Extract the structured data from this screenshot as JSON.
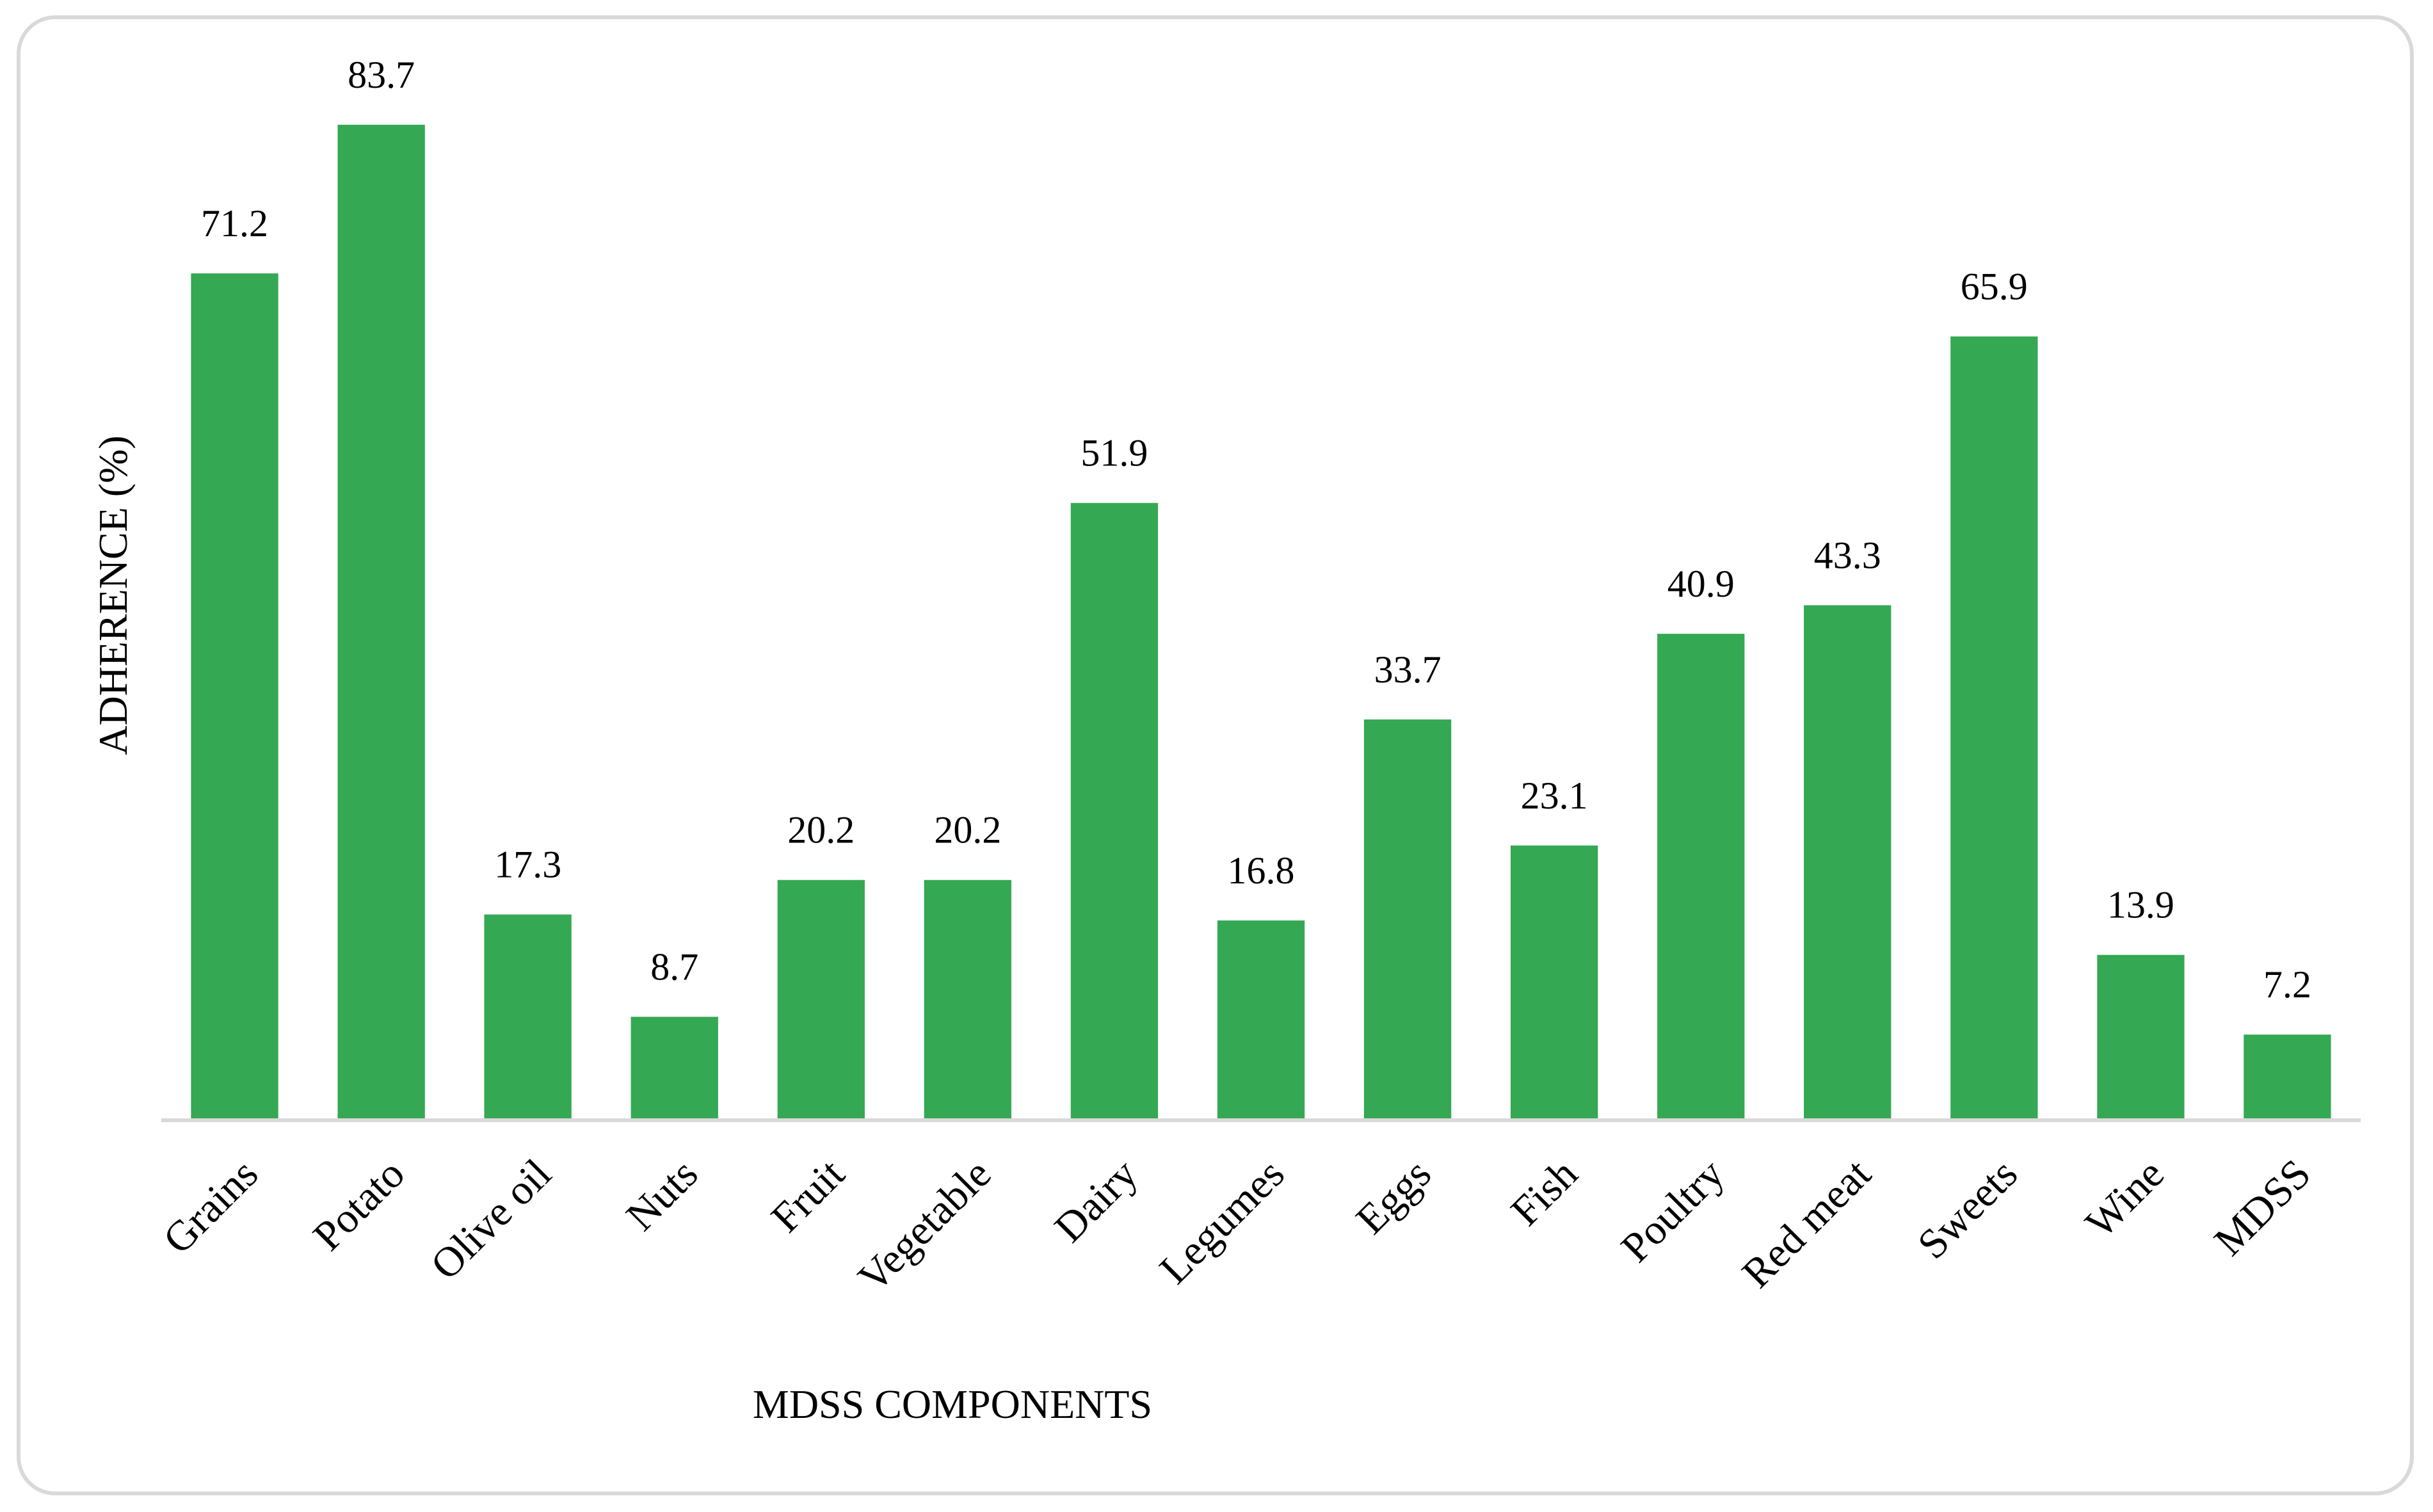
{
  "chart_data": {
    "type": "bar",
    "title": "",
    "xlabel": "MDSS COMPONENTS",
    "ylabel": "ADHERENCE (%)",
    "categories": [
      "Grains",
      "Potato",
      "Olive oil",
      "Nuts",
      "Fruit",
      "Vegetable",
      "Dairy",
      "Legumes",
      "Eggs",
      "Fish",
      "Poultry",
      "Red meat",
      "Sweets",
      "Wine",
      "MDSS"
    ],
    "values": [
      71.2,
      83.7,
      17.3,
      8.7,
      20.2,
      20.2,
      51.9,
      16.8,
      33.7,
      23.1,
      40.9,
      43.3,
      65.9,
      13.9,
      7.2
    ],
    "data_labels": [
      "71.2",
      "83.7",
      "17.3",
      "8.7",
      "20.2",
      "20.2",
      "51.9",
      "16.8",
      "33.7",
      "23.1",
      "40.9",
      "43.3",
      "65.9",
      "13.9",
      "7.2"
    ],
    "ylim": [
      0,
      90
    ],
    "grid": false,
    "legend": "none",
    "bar_color": "#34a853"
  }
}
